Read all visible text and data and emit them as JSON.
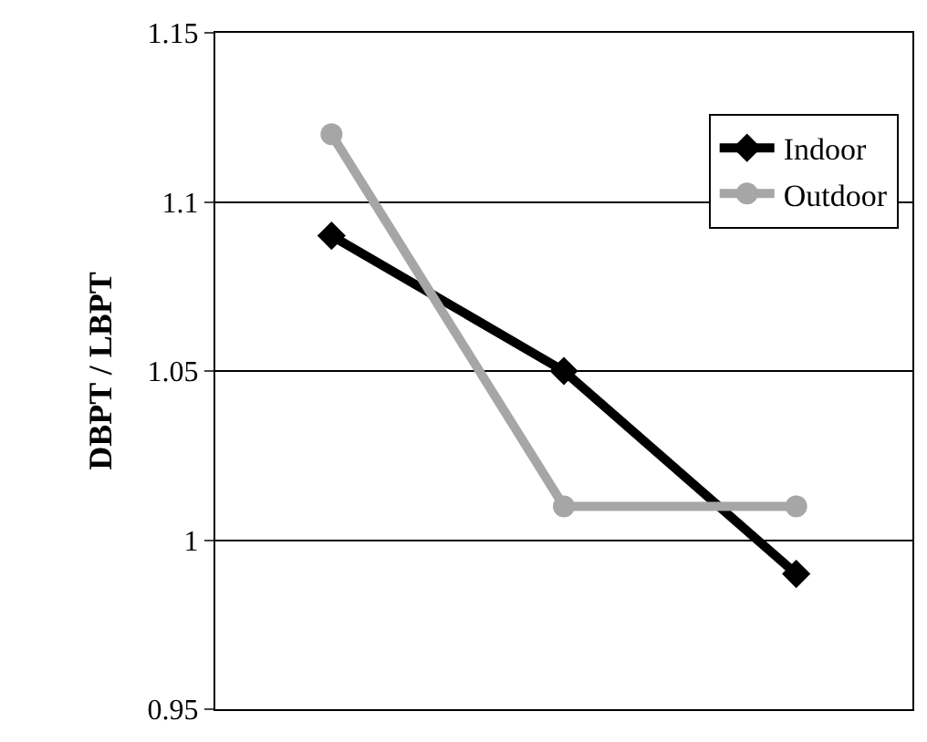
{
  "chart_data": {
    "type": "line",
    "ylabel": "DBPT / LBPT",
    "categories": [
      null,
      null,
      null
    ],
    "series": [
      {
        "name": "Indoor",
        "color": "#000000",
        "marker": "diamond",
        "values": [
          1.09,
          1.05,
          0.99
        ]
      },
      {
        "name": "Outdoor",
        "color": "#a6a6a6",
        "marker": "circle",
        "values": [
          1.12,
          1.01,
          1.01
        ]
      }
    ],
    "ylim": [
      0.95,
      1.15
    ],
    "yticks": [
      0.95,
      1,
      1.05,
      1.1,
      1.15
    ],
    "grid": "y",
    "legend": "top right",
    "line_style": "solid"
  }
}
